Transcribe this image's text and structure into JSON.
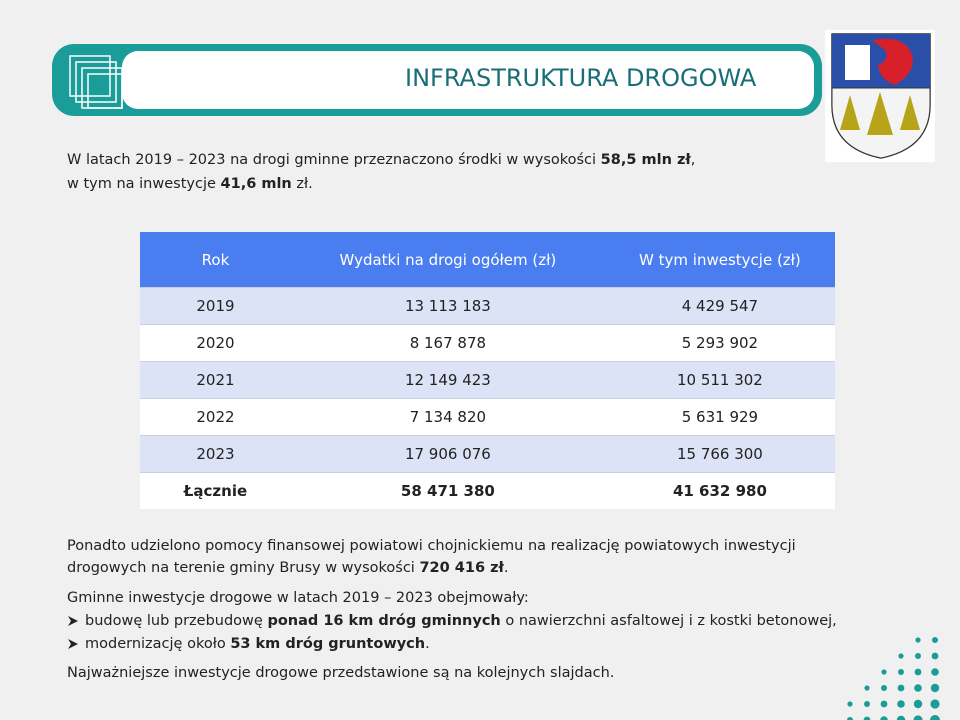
{
  "header": {
    "title": "INFRASTRUKTURA DROGOWA"
  },
  "intro": [
    [
      {
        "text": "W latach 2019 – 2023 na drogi gminne przeznaczono środki w wysokości "
      },
      {
        "text": "58,5 mln zł",
        "bold": true
      },
      {
        "text": ","
      }
    ],
    [
      {
        "text": "w tym na inwestycje "
      },
      {
        "text": "41,6 mln",
        "bold": true
      },
      {
        "text": " zł."
      }
    ]
  ],
  "table": {
    "columns": [
      "Rok",
      "Wydatki na drogi ogółem (zł)",
      "W tym inwestycje (zł)"
    ],
    "rows": [
      [
        "2019",
        "13 113 183",
        "4 429 547"
      ],
      [
        "2020",
        "8 167 878",
        "5 293 902"
      ],
      [
        "2021",
        "12 149 423",
        "10 511 302"
      ],
      [
        "2022",
        "7 134 820",
        "5 631 929"
      ],
      [
        "2023",
        "17 906 076",
        "15 766 300"
      ]
    ],
    "total": [
      "Łącznie",
      "58 471 380",
      "41 632 980"
    ]
  },
  "aid": [
    [
      {
        "text": "Ponadto udzielono pomocy finansowej powiatowi chojnickiemu na realizację powiatowych inwestycji"
      }
    ],
    [
      {
        "text": "drogowych na terenie gminy Brusy w wysokości "
      },
      {
        "text": "720 416 zł",
        "bold": true
      },
      {
        "text": "."
      }
    ]
  ],
  "scope": {
    "intro": [
      [
        {
          "text": "Gminne inwestycje drogowe w latach 2019 – 2023 obejmowały:"
        }
      ]
    ],
    "items": [
      [
        {
          "text": "budowę lub przebudowę "
        },
        {
          "text": "ponad 16 km dróg gminnych",
          "bold": true
        },
        {
          "text": " o nawierzchni asfaltowej i z kostki betonowej,"
        }
      ],
      [
        {
          "text": "modernizację około "
        },
        {
          "text": "53 km dróg gruntowych",
          "bold": true
        },
        {
          "text": "."
        }
      ]
    ]
  },
  "closing": [
    [
      {
        "text": "Najważniejsze inwestycje drogowe przedstawione są na kolejnych slajdach."
      }
    ]
  ]
}
